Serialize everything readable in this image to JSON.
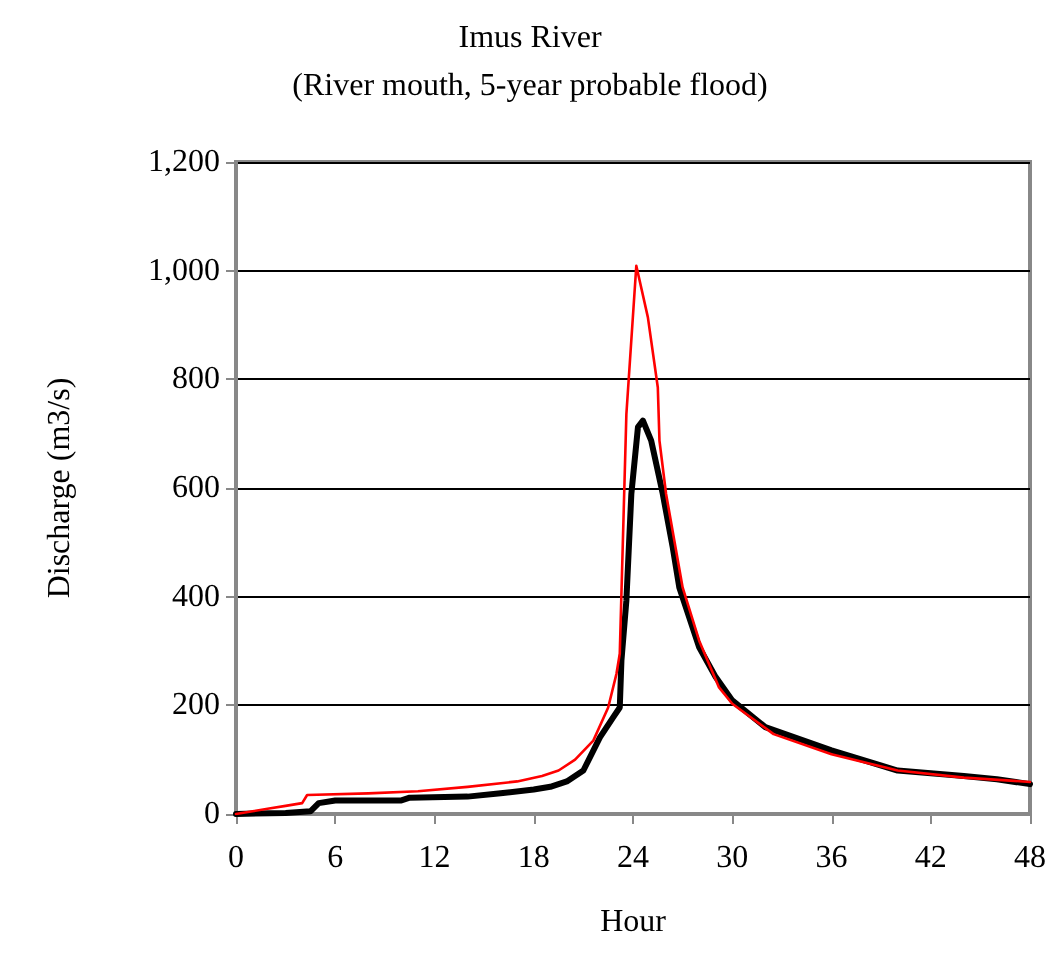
{
  "chart_data": {
    "type": "line",
    "title": "Imus River",
    "subtitle": "(River mouth, 5-year probable flood)",
    "xlabel": "Hour",
    "ylabel": "Discharge (m3/s)",
    "xlim": [
      0,
      48
    ],
    "xticks": [
      0,
      6,
      12,
      18,
      24,
      30,
      36,
      42,
      48
    ],
    "ylim": [
      0,
      1200
    ],
    "yticks": [
      0,
      200,
      400,
      600,
      800,
      {
        "value": 1000,
        "label": "1,000"
      },
      {
        "value": 1200,
        "label": "1,200"
      }
    ],
    "grid": "y",
    "marker": "none",
    "line_style": "solid",
    "series": [
      {
        "color": "#ff0000",
        "x": [
          0,
          1,
          2,
          3,
          4,
          4.3,
          8,
          11,
          14,
          17,
          18.5,
          19.5,
          20.5,
          21.6,
          22.5,
          23,
          23.2,
          23.6,
          24.2,
          24.9,
          25.5,
          25.6,
          26,
          27,
          28,
          29.2,
          30,
          32.5,
          36,
          40,
          44,
          48
        ],
        "values": [
          0,
          5,
          10,
          15,
          20,
          35,
          38,
          42,
          50,
          60,
          70,
          80,
          100,
          135,
          196,
          258,
          295,
          736,
          1009,
          914,
          785,
          687,
          589,
          417,
          319,
          233,
          203,
          147,
          110,
          80,
          67,
          59
        ]
      },
      {
        "color": "#000000",
        "x": [
          0,
          3,
          4.5,
          5,
          6,
          10,
          10.5,
          14,
          16,
          18,
          19,
          20,
          21,
          22,
          22.8,
          23.2,
          23.3,
          23.6,
          23.9,
          24.3,
          24.6,
          25.1,
          25.8,
          26.4,
          26.8,
          28,
          29,
          30,
          32,
          36,
          40,
          44,
          46,
          48
        ],
        "values": [
          0,
          2,
          5,
          20,
          25,
          25,
          30,
          32,
          38,
          45,
          50,
          60,
          80,
          141,
          178,
          196,
          282,
          393,
          589,
          712,
          724,
          687,
          589,
          491,
          417,
          307,
          252,
          209,
          160,
          117,
          80,
          70,
          64,
          55
        ]
      }
    ]
  }
}
